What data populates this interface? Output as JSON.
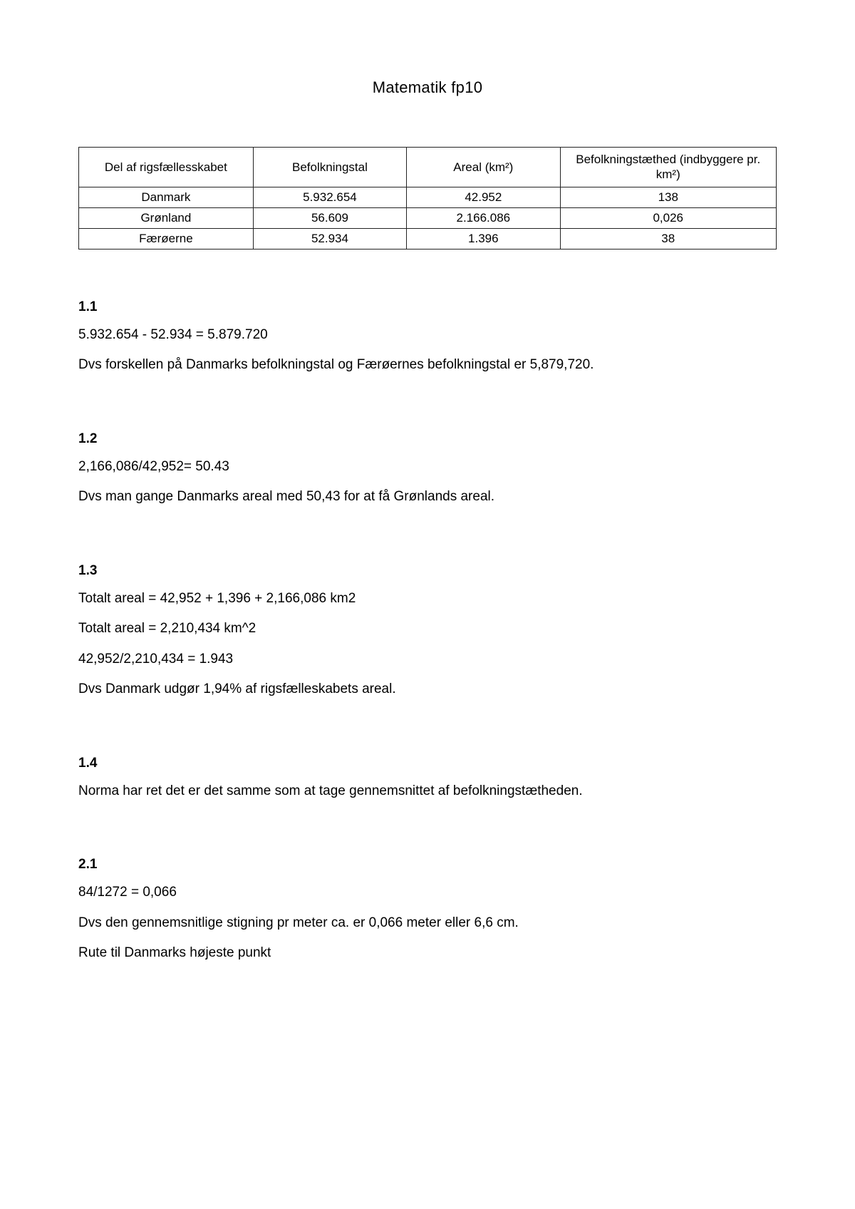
{
  "title": "Matematik fp10",
  "table": {
    "headers": [
      "Del af rigsfællesskabet",
      "Befolkningstal",
      "Areal (km²)",
      "Befolkningstæthed (indbyggere pr. km²)"
    ],
    "rows": [
      [
        "Danmark",
        "5.932.654",
        "42.952",
        "138"
      ],
      [
        "Grønland",
        "56.609",
        "2.166.086",
        "0,026"
      ],
      [
        "Færøerne",
        "52.934",
        "1.396",
        "38"
      ]
    ]
  },
  "sections": [
    {
      "heading": "1.1",
      "paragraphs": [
        "5.932.654 - 52.934 = 5.879.720",
        "Dvs forskellen på Danmarks befolkningstal og Færøernes befolkningstal er 5,879,720."
      ]
    },
    {
      "heading": "1.2",
      "paragraphs": [
        "2,166,086/42,952= 50.43",
        "Dvs man gange Danmarks areal med 50,43 for at få Grønlands areal."
      ]
    },
    {
      "heading": "1.3",
      "paragraphs": [
        "Totalt areal = 42,952 + 1,396 + 2,166,086 km2",
        "Totalt areal = 2,210,434 km^2",
        "42,952/2,210,434 = 1.943",
        "Dvs Danmark udgør 1,94% af rigsfælleskabets areal."
      ]
    },
    {
      "heading": "1.4",
      "paragraphs": [
        "Norma har ret det er det samme som at tage gennemsnittet af befolkningstætheden."
      ]
    },
    {
      "heading": "2.1",
      "paragraphs": [
        "84/1272 = 0,066",
        "Dvs den gennemsnitlige stigning pr meter ca. er 0,066 meter eller 6,6 cm.",
        " Rute til Danmarks højeste punkt"
      ]
    }
  ]
}
